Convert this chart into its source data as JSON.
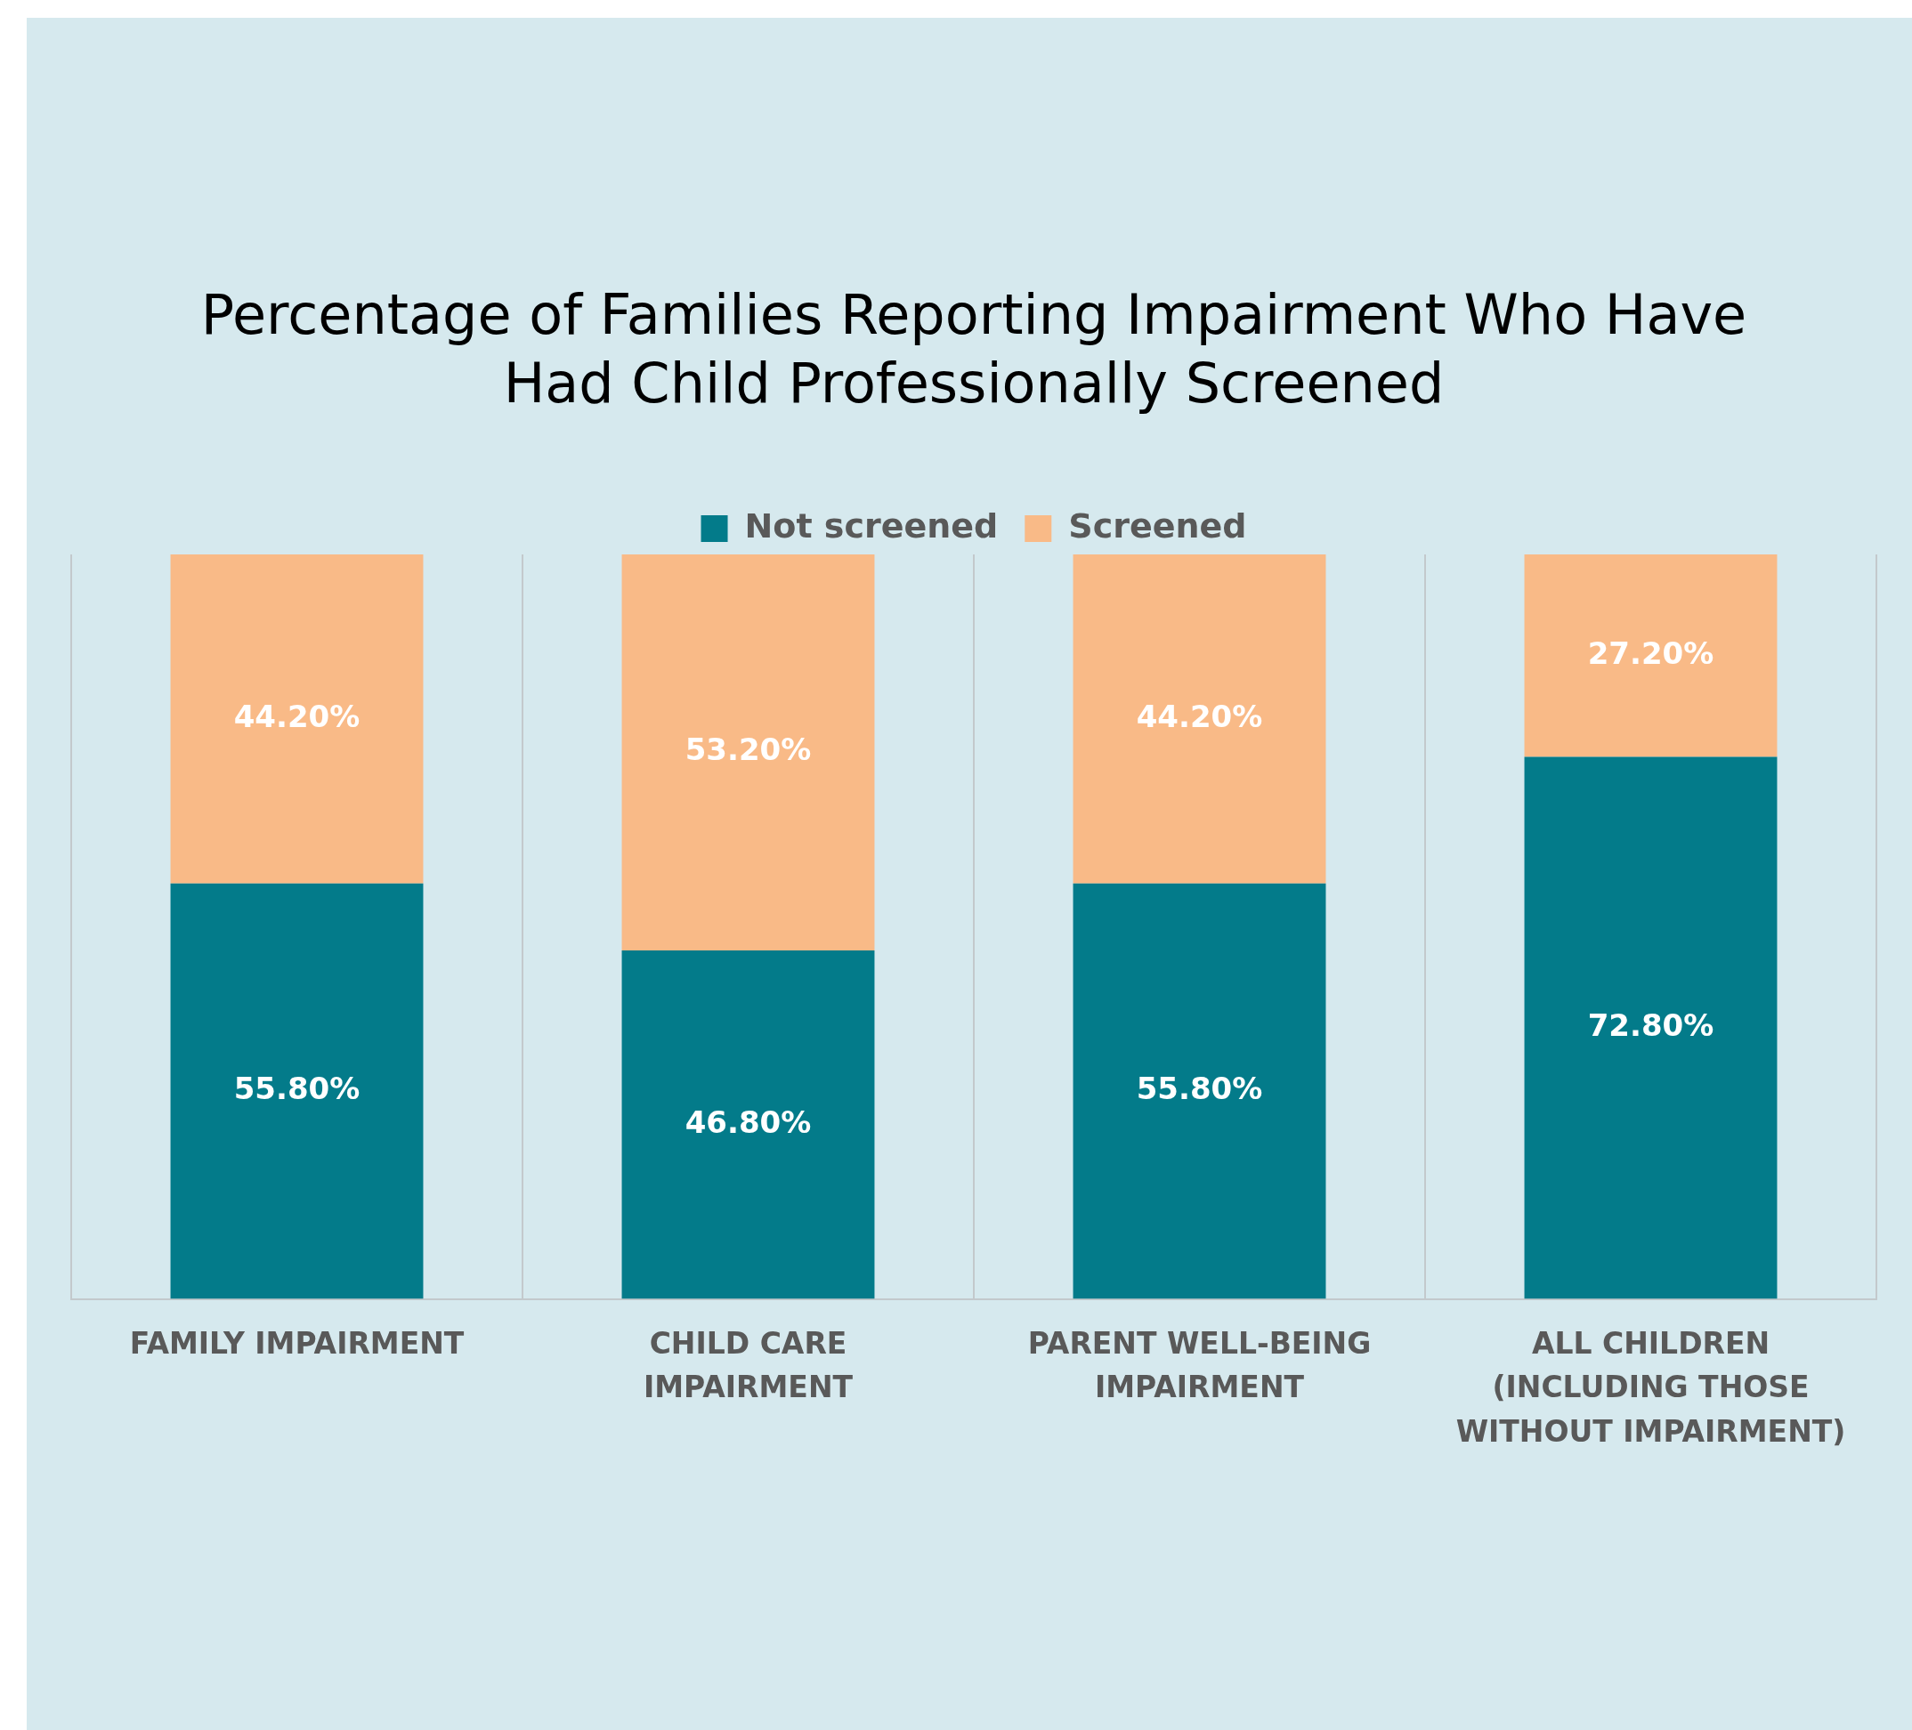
{
  "chart_data": {
    "type": "bar",
    "title": "Percentage of Families Reporting Impairment Who Have Had Child Professionally Screened",
    "categories": [
      "FAMILY IMPAIRMENT",
      "CHILD CARE IMPAIRMENT",
      "PARENT WELL-BEING IMPAIRMENT",
      "ALL CHILDREN (INCLUDING THOSE WITHOUT IMPAIRMENT)"
    ],
    "stacked": true,
    "series": [
      {
        "name": "Not screened",
        "color": "#037b8a",
        "values": [
          55.8,
          46.8,
          55.8,
          72.8
        ],
        "value_labels": [
          "55.80%",
          "46.80%",
          "55.80%",
          "72.80%"
        ]
      },
      {
        "name": "Screened",
        "color": "#f9ba87",
        "values": [
          44.2,
          53.2,
          44.2,
          27.2
        ],
        "value_labels": [
          "44.20%",
          "53.20%",
          "44.20%",
          "27.20%"
        ]
      }
    ],
    "grid": "x",
    "legend": "top"
  }
}
